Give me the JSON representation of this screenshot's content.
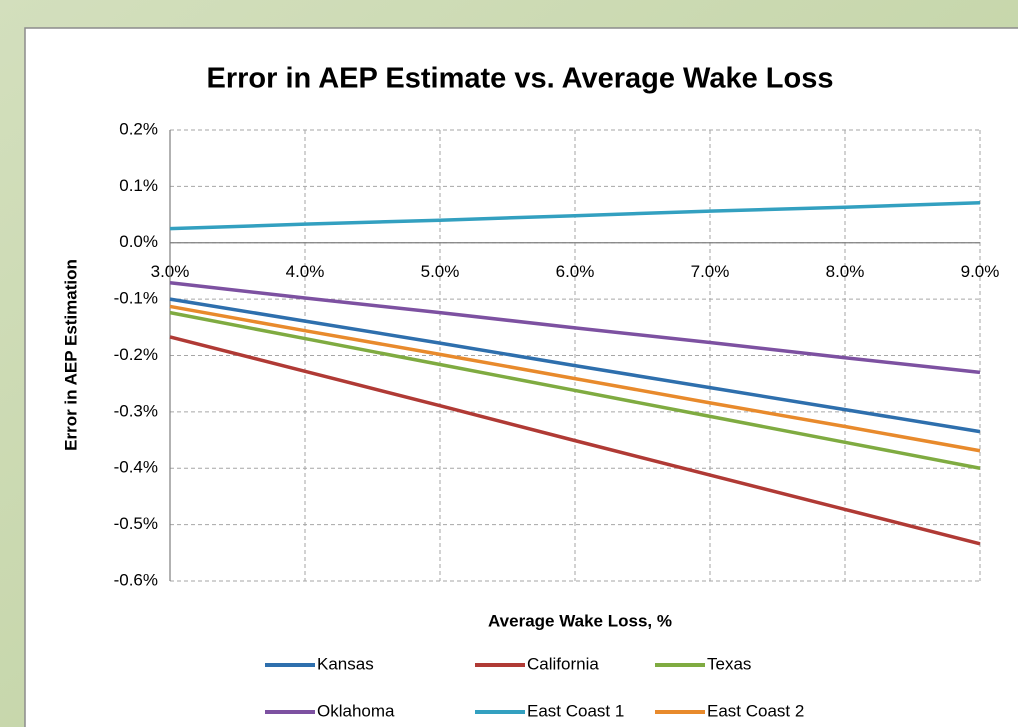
{
  "chart_data": {
    "type": "line",
    "title": "Error in AEP Estimate vs. Average Wake Loss",
    "x_label": "Average Wake Loss, %",
    "y_label": "Error in AEP Estimation",
    "x": [
      3,
      4,
      5,
      6,
      7,
      8,
      9
    ],
    "series": [
      {
        "name": "Kansas",
        "color": "#2e6fad",
        "values": [
          -0.1,
          -0.139,
          -0.178,
          -0.218,
          -0.257,
          -0.296,
          -0.335
        ]
      },
      {
        "name": "California",
        "color": "#b03a35",
        "values": [
          -0.167,
          -0.228,
          -0.289,
          -0.351,
          -0.412,
          -0.473,
          -0.534
        ]
      },
      {
        "name": "Texas",
        "color": "#7fab41",
        "values": [
          -0.124,
          -0.17,
          -0.216,
          -0.262,
          -0.308,
          -0.354,
          -0.4
        ]
      },
      {
        "name": "Oklahoma",
        "color": "#7d51a1",
        "values": [
          -0.071,
          -0.098,
          -0.124,
          -0.151,
          -0.177,
          -0.204,
          -0.23
        ]
      },
      {
        "name": "East Coast 1",
        "color": "#33a0c0",
        "values": [
          0.025,
          0.033,
          0.04,
          0.048,
          0.056,
          0.063,
          0.071
        ]
      },
      {
        "name": "East Coast 2",
        "color": "#e88a2c",
        "values": [
          -0.113,
          -0.156,
          -0.198,
          -0.241,
          -0.284,
          -0.326,
          -0.369
        ]
      }
    ],
    "xlim": [
      3,
      9
    ],
    "xticks": [
      {
        "value": 3,
        "label": "3.0%"
      },
      {
        "value": 4,
        "label": "4.0%"
      },
      {
        "value": 5,
        "label": "5.0%"
      },
      {
        "value": 6,
        "label": "6.0%"
      },
      {
        "value": 7,
        "label": "7.0%"
      },
      {
        "value": 8,
        "label": "8.0%"
      },
      {
        "value": 9,
        "label": "9.0%"
      }
    ],
    "ylim": [
      -0.6,
      0.2
    ],
    "yticks": [
      {
        "value": 0.2,
        "label": "0.2%"
      },
      {
        "value": 0.1,
        "label": "0.1%"
      },
      {
        "value": 0,
        "label": "0.0%"
      },
      {
        "value": -0.1,
        "label": "-0.1%"
      },
      {
        "value": -0.2,
        "label": "-0.2%"
      },
      {
        "value": -0.3,
        "label": "-0.3%"
      },
      {
        "value": -0.4,
        "label": "-0.4%"
      },
      {
        "value": -0.5,
        "label": "-0.5%"
      },
      {
        "value": -0.6,
        "label": "-0.6%"
      }
    ],
    "grid": true,
    "legend": "bottom"
  }
}
